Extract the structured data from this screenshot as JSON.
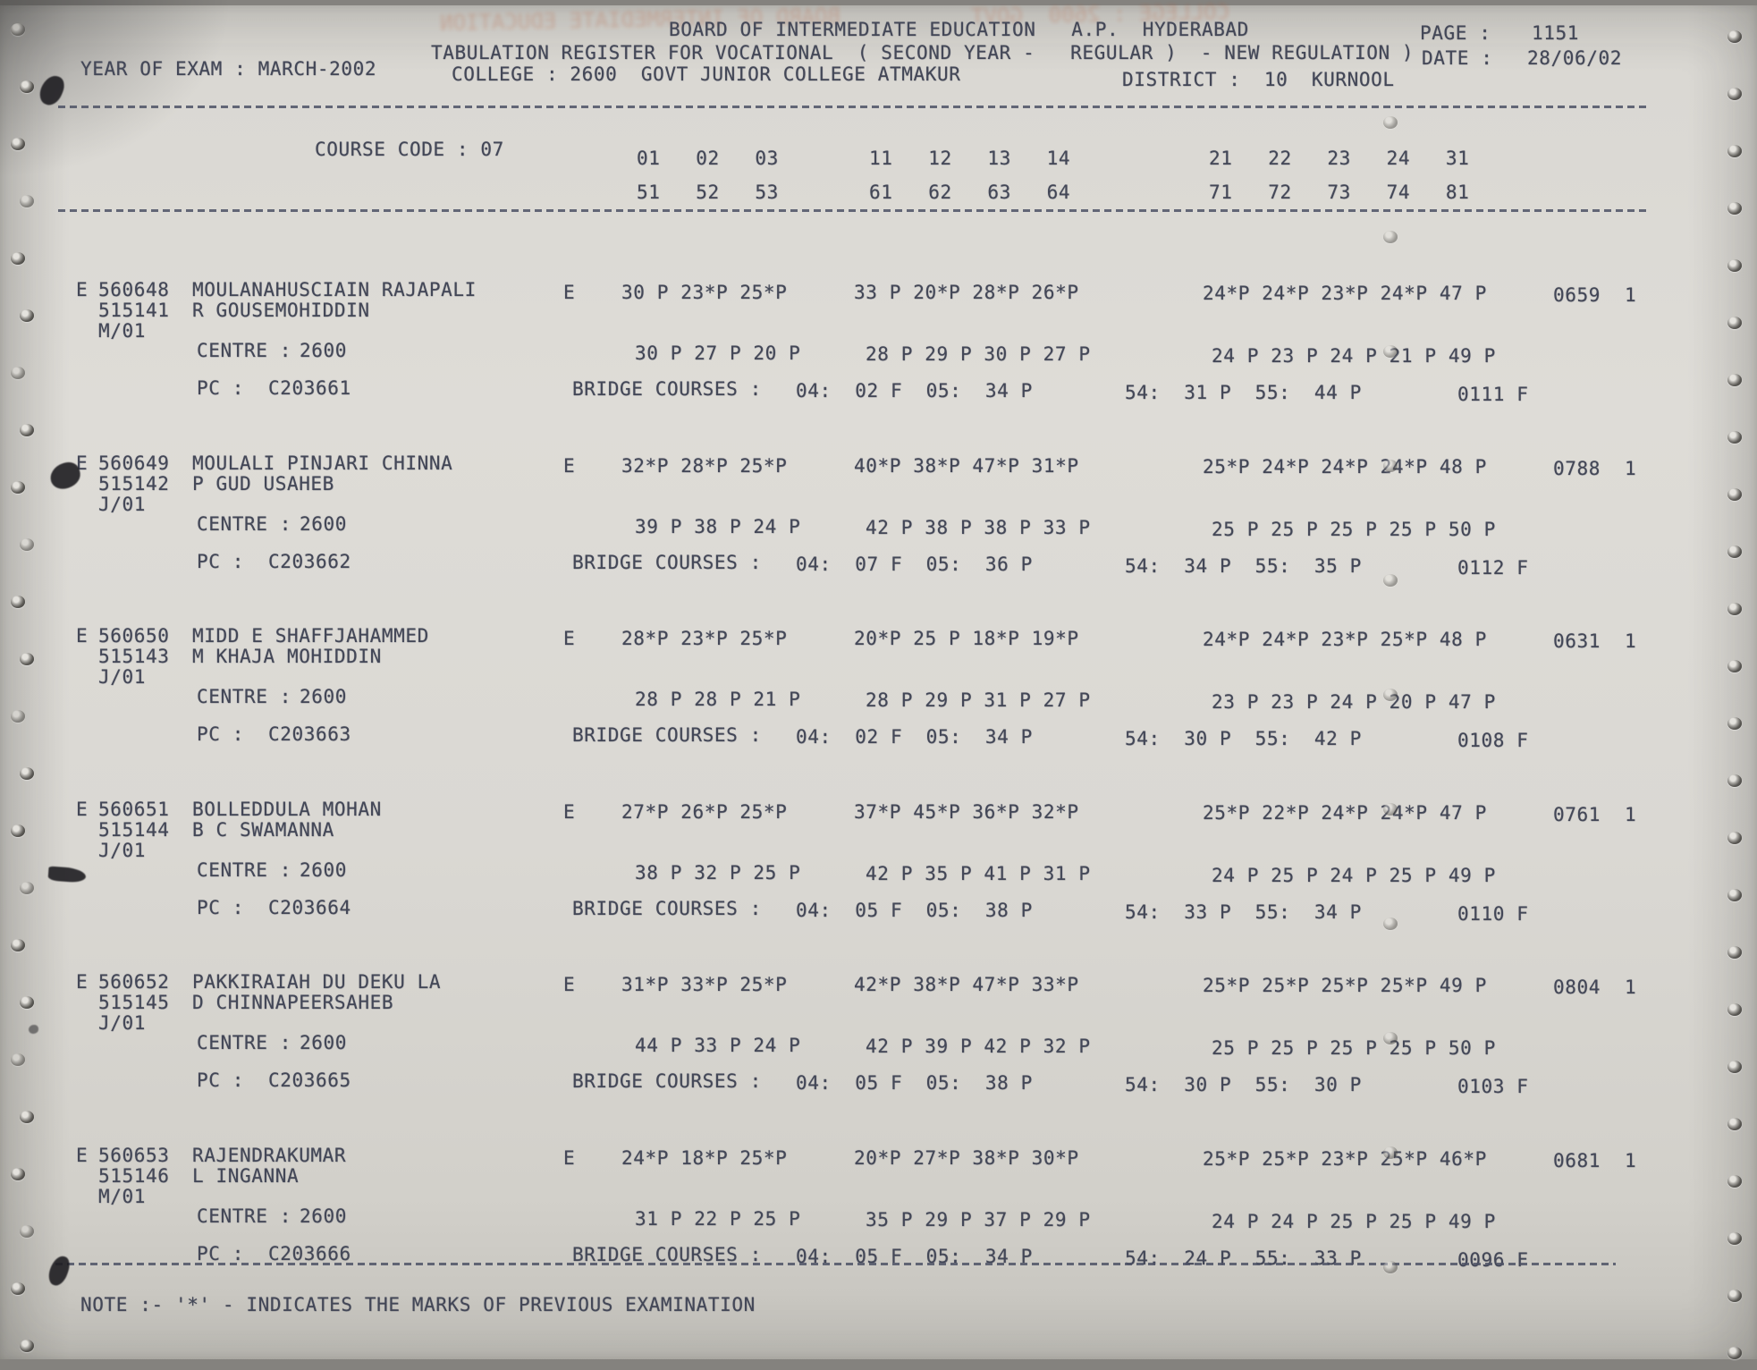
{
  "page": {
    "header_line1": "BOARD OF INTERMEDIATE EDUCATION   A.P.  HYDERABAD",
    "page_label": "PAGE :",
    "page_value": "1151",
    "header_line2": "TABULATION REGISTER FOR VOCATIONAL  ( SECOND YEAR -   REGULAR )  - NEW REGULATION )",
    "date_label": "DATE :",
    "date_value": "28/06/02",
    "year_of_exam": "YEAR OF EXAM : MARCH-2002",
    "college": "COLLEGE : 2600  GOVT JUNIOR COLLEGE ATMAKUR",
    "district": "DISTRICT :  10  KURNOOL",
    "course_code": "COURSE CODE : 07",
    "codes_row1": {
      "g1": "01   02   03",
      "g2": "11   12   13   14",
      "g3": "21   22   23   24   31"
    },
    "codes_row2": {
      "g1": "51   52   53",
      "g2": "61   62   63   64",
      "g3": "71   72   73   74   81"
    },
    "note": "NOTE :- '*' - INDICATES THE MARKS OF PREVIOUS EXAMINATION"
  },
  "labels": {
    "centre": "CENTRE :",
    "pc": "PC :",
    "bridge": "BRIDGE COURSES :"
  },
  "records": [
    {
      "flag": "E",
      "regno": "560648",
      "regno2": "515141",
      "mcode": "M/01",
      "name": "MOULANAHUSCIAIN RAJAPALI",
      "parent": "R GOUSEMOHIDDIN",
      "medium": "E",
      "m1g1": "30 P 23*P 25*P",
      "m1g2": "33 P 20*P 28*P 26*P",
      "m1g3": "24*P 24*P 23*P 24*P 47 P",
      "total": "0659",
      "attempt": "1",
      "centre": "2600",
      "m2g1": "30 P 27 P 20 P",
      "m2g2": "28 P 29 P 30 P 27 P",
      "m2g3": "24 P 23 P 24 P 21 P 49 P",
      "pc": "C203661",
      "bridge1": "04:  02 F  05:  34 P",
      "bridge2": "54:  31 P  55:  44 P",
      "bridge_result": "0111 F"
    },
    {
      "flag": "E",
      "regno": "560649",
      "regno2": "515142",
      "mcode": "J/01",
      "name": "MOULALI PINJARI CHINNA",
      "parent": "P GUD USAHEB",
      "medium": "E",
      "m1g1": "32*P 28*P 25*P",
      "m1g2": "40*P 38*P 47*P 31*P",
      "m1g3": "25*P 24*P 24*P 24*P 48 P",
      "total": "0788",
      "attempt": "1",
      "centre": "2600",
      "m2g1": "39 P 38 P 24 P",
      "m2g2": "42 P 38 P 38 P 33 P",
      "m2g3": "25 P 25 P 25 P 25 P 50 P",
      "pc": "C203662",
      "bridge1": "04:  07 F  05:  36 P",
      "bridge2": "54:  34 P  55:  35 P",
      "bridge_result": "0112 F"
    },
    {
      "flag": "E",
      "regno": "560650",
      "regno2": "515143",
      "mcode": "J/01",
      "name": "MIDD E SHAFFJAHAMMED",
      "parent": "M KHAJA MOHIDDIN",
      "medium": "E",
      "m1g1": "28*P 23*P 25*P",
      "m1g2": "20*P 25 P 18*P 19*P",
      "m1g3": "24*P 24*P 23*P 25*P 48 P",
      "total": "0631",
      "attempt": "1",
      "centre": "2600",
      "m2g1": "28 P 28 P 21 P",
      "m2g2": "28 P 29 P 31 P 27 P",
      "m2g3": "23 P 23 P 24 P 20 P 47 P",
      "pc": "C203663",
      "bridge1": "04:  02 F  05:  34 P",
      "bridge2": "54:  30 P  55:  42 P",
      "bridge_result": "0108 F"
    },
    {
      "flag": "E",
      "regno": "560651",
      "regno2": "515144",
      "mcode": "J/01",
      "name": "BOLLEDDULA MOHAN",
      "parent": "B C SWAMANNA",
      "medium": "E",
      "m1g1": "27*P 26*P 25*P",
      "m1g2": "37*P 45*P 36*P 32*P",
      "m1g3": "25*P 22*P 24*P 24*P 47 P",
      "total": "0761",
      "attempt": "1",
      "centre": "2600",
      "m2g1": "38 P 32 P 25 P",
      "m2g2": "42 P 35 P 41 P 31 P",
      "m2g3": "24 P 25 P 24 P 25 P 49 P",
      "pc": "C203664",
      "bridge1": "04:  05 F  05:  38 P",
      "bridge2": "54:  33 P  55:  34 P",
      "bridge_result": "0110 F"
    },
    {
      "flag": "E",
      "regno": "560652",
      "regno2": "515145",
      "mcode": "J/01",
      "name": "PAKKIRAIAH DU DEKU LA",
      "parent": "D CHINNAPEERSAHEB",
      "medium": "E",
      "m1g1": "31*P 33*P 25*P",
      "m1g2": "42*P 38*P 47*P 33*P",
      "m1g3": "25*P 25*P 25*P 25*P 49 P",
      "total": "0804",
      "attempt": "1",
      "centre": "2600",
      "m2g1": "44 P 33 P 24 P",
      "m2g2": "42 P 39 P 42 P 32 P",
      "m2g3": "25 P 25 P 25 P 25 P 50 P",
      "pc": "C203665",
      "bridge1": "04:  05 F  05:  38 P",
      "bridge2": "54:  30 P  55:  30 P",
      "bridge_result": "0103 F"
    },
    {
      "flag": "E",
      "regno": "560653",
      "regno2": "515146",
      "mcode": "M/01",
      "name": "RAJENDRAKUMAR",
      "parent": "L INGANNA",
      "medium": "E",
      "m1g1": "24*P 18*P 25*P",
      "m1g2": "20*P 27*P 38*P 30*P",
      "m1g3": "25*P 25*P 23*P 25*P 46*P",
      "total": "0681",
      "attempt": "1",
      "centre": "2600",
      "m2g1": "31 P 22 P 25 P",
      "m2g2": "35 P 29 P 37 P 29 P",
      "m2g3": "24 P 24 P 25 P 25 P 49 P",
      "pc": "C203666",
      "bridge1": "04:  05 F  05:  34 P",
      "bridge2": "54:  24 P  55:  33 P",
      "bridge_result": "0096 F"
    }
  ]
}
